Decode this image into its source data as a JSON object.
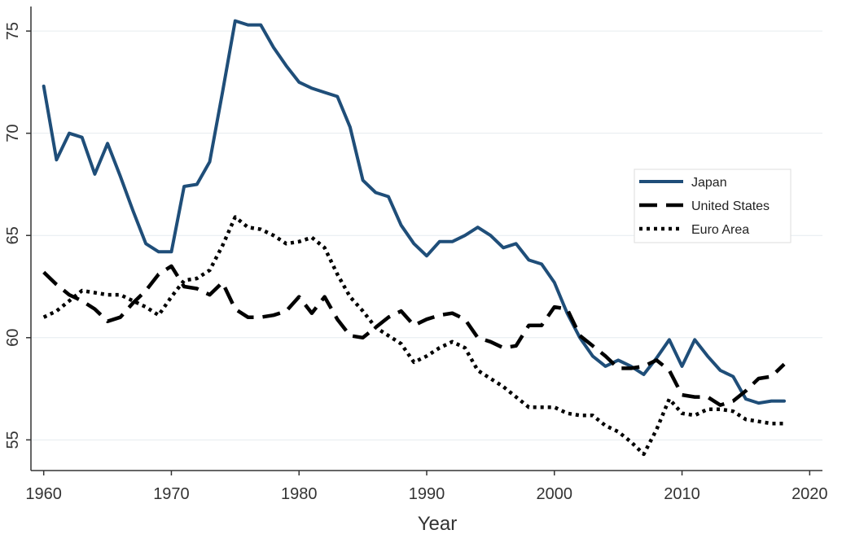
{
  "chart_data": {
    "type": "line",
    "title": "",
    "xlabel": "Year",
    "ylabel": "",
    "xlim": [
      1959,
      2021
    ],
    "ylim": [
      53.5,
      76.2
    ],
    "xticks": [
      1960,
      1970,
      1980,
      1990,
      2000,
      2010,
      2020
    ],
    "yticks": [
      55,
      60,
      65,
      70,
      75
    ],
    "grid": "horizontal",
    "legend_position": "right",
    "series": [
      {
        "name": "Japan",
        "color": "#1f4e79",
        "style": "solid",
        "x": [
          1960,
          1961,
          1962,
          1963,
          1964,
          1965,
          1966,
          1967,
          1968,
          1969,
          1970,
          1971,
          1972,
          1973,
          1974,
          1975,
          1976,
          1977,
          1978,
          1979,
          1980,
          1981,
          1982,
          1983,
          1984,
          1985,
          1986,
          1987,
          1988,
          1989,
          1990,
          1991,
          1992,
          1993,
          1994,
          1995,
          1996,
          1997,
          1998,
          1999,
          2000,
          2001,
          2002,
          2003,
          2004,
          2005,
          2006,
          2007,
          2008,
          2009,
          2010,
          2011,
          2012,
          2013,
          2014,
          2015,
          2016,
          2017,
          2018
        ],
        "y": [
          72.3,
          68.7,
          70.0,
          69.8,
          68.0,
          69.5,
          67.9,
          66.2,
          64.6,
          64.2,
          64.2,
          67.4,
          67.5,
          68.6,
          72.0,
          75.5,
          75.3,
          75.3,
          74.2,
          73.3,
          72.5,
          72.2,
          72.0,
          71.8,
          70.3,
          67.7,
          67.1,
          66.9,
          65.5,
          64.6,
          64.0,
          64.7,
          64.7,
          65.0,
          65.4,
          65.0,
          64.4,
          64.6,
          63.8,
          63.6,
          62.7,
          61.2,
          60.0,
          59.1,
          58.6,
          58.9,
          58.6,
          58.2,
          59.0,
          59.9,
          58.6,
          59.9,
          59.1,
          58.4,
          58.1,
          57.0,
          56.8,
          56.9,
          56.9
        ]
      },
      {
        "name": "United States",
        "color": "#000000",
        "style": "dashed",
        "x": [
          1960,
          1961,
          1962,
          1963,
          1964,
          1965,
          1966,
          1967,
          1968,
          1969,
          1970,
          1971,
          1972,
          1973,
          1974,
          1975,
          1976,
          1977,
          1978,
          1979,
          1980,
          1981,
          1982,
          1983,
          1984,
          1985,
          1986,
          1987,
          1988,
          1989,
          1990,
          1991,
          1992,
          1993,
          1994,
          1995,
          1996,
          1997,
          1998,
          1999,
          2000,
          2001,
          2002,
          2003,
          2004,
          2005,
          2006,
          2007,
          2008,
          2009,
          2010,
          2011,
          2012,
          2013,
          2014,
          2015,
          2016,
          2017,
          2018
        ],
        "y": [
          63.2,
          62.6,
          62.1,
          61.8,
          61.4,
          60.8,
          61.0,
          61.7,
          62.3,
          63.1,
          63.5,
          62.5,
          62.4,
          62.1,
          62.7,
          61.4,
          61.0,
          61.0,
          61.1,
          61.3,
          62.0,
          61.2,
          62.0,
          60.9,
          60.1,
          60.0,
          60.5,
          61.0,
          61.3,
          60.6,
          60.9,
          61.1,
          61.2,
          60.9,
          60.0,
          59.8,
          59.5,
          59.6,
          60.6,
          60.6,
          61.5,
          61.4,
          60.1,
          59.6,
          59.1,
          58.5,
          58.5,
          58.6,
          58.9,
          58.4,
          57.2,
          57.1,
          57.1,
          56.7,
          56.9,
          57.4,
          58.0,
          58.1,
          58.7
        ]
      },
      {
        "name": "Euro Area",
        "color": "#000000",
        "style": "dotted",
        "x": [
          1960,
          1961,
          1962,
          1963,
          1964,
          1965,
          1966,
          1967,
          1968,
          1969,
          1970,
          1971,
          1972,
          1973,
          1974,
          1975,
          1976,
          1977,
          1978,
          1979,
          1980,
          1981,
          1982,
          1983,
          1984,
          1985,
          1986,
          1987,
          1988,
          1989,
          1990,
          1991,
          1992,
          1993,
          1994,
          1995,
          1996,
          1997,
          1998,
          1999,
          2000,
          2001,
          2002,
          2003,
          2004,
          2005,
          2006,
          2007,
          2008,
          2009,
          2010,
          2011,
          2012,
          2013,
          2014,
          2015,
          2016,
          2017,
          2018
        ],
        "y": [
          61.0,
          61.3,
          61.8,
          62.3,
          62.2,
          62.1,
          62.1,
          61.8,
          61.5,
          61.1,
          62.0,
          62.8,
          62.9,
          63.3,
          64.5,
          65.9,
          65.4,
          65.3,
          65.0,
          64.6,
          64.7,
          64.9,
          64.4,
          63.1,
          62.0,
          61.3,
          60.5,
          60.1,
          59.7,
          58.8,
          59.1,
          59.5,
          59.8,
          59.5,
          58.4,
          58.0,
          57.6,
          57.1,
          56.6,
          56.6,
          56.6,
          56.3,
          56.2,
          56.2,
          55.7,
          55.4,
          54.9,
          54.3,
          55.5,
          57.0,
          56.3,
          56.2,
          56.5,
          56.5,
          56.4,
          56.0,
          55.9,
          55.8,
          55.8
        ]
      }
    ]
  }
}
